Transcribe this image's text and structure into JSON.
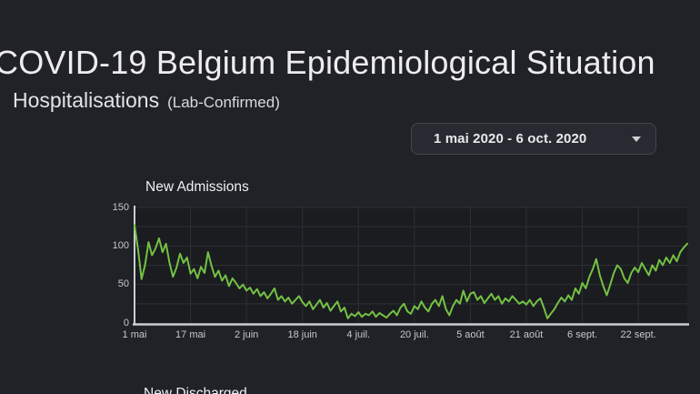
{
  "page": {
    "title": "COVID-19 Belgium Epidemiological Situation",
    "subtitle": "Hospitalisations",
    "subtitle_note": "(Lab-Confirmed)"
  },
  "date_picker": {
    "value": "1 mai 2020 - 6 oct. 2020",
    "icon": "caret-down-icon"
  },
  "panel": {
    "title": "New Admissions"
  },
  "next_panel": {
    "title": "New Discharged"
  },
  "colors": {
    "page_bg": "#202227",
    "plot_bg": "#1a1c20",
    "grid": "#2c2f34",
    "axis": "#c9ccd1",
    "line_green": "#74c143",
    "tick_text": "#c7c8ca"
  },
  "chart_data": {
    "type": "line",
    "title": "New Admissions",
    "xlabel": "",
    "ylabel": "",
    "start_date": "2020-05-01",
    "end_date": "2020-10-06",
    "ylim": [
      0,
      150
    ],
    "y_ticks": [
      0,
      50,
      100,
      150
    ],
    "y_grid_step": 25,
    "legend": "none",
    "grid": "on",
    "x_tick_days": [
      0,
      16,
      32,
      48,
      64,
      80,
      96,
      112,
      128,
      144
    ],
    "x_tick_labels": [
      "1 mai",
      "17 mai",
      "2 juin",
      "18 juin",
      "4 juil.",
      "20 juil.",
      "5 août",
      "21 août",
      "6 sept.",
      "22 sept."
    ],
    "values": [
      127,
      96,
      57,
      75,
      105,
      88,
      97,
      110,
      92,
      103,
      78,
      60,
      72,
      90,
      78,
      85,
      64,
      70,
      58,
      73,
      65,
      92,
      74,
      60,
      68,
      55,
      62,
      48,
      58,
      52,
      45,
      50,
      42,
      46,
      38,
      44,
      35,
      40,
      32,
      38,
      45,
      30,
      35,
      28,
      33,
      25,
      30,
      35,
      27,
      22,
      28,
      18,
      24,
      30,
      20,
      26,
      16,
      22,
      28,
      15,
      20,
      6,
      12,
      9,
      14,
      8,
      12,
      10,
      15,
      8,
      13,
      10,
      7,
      12,
      16,
      10,
      20,
      25,
      15,
      12,
      22,
      18,
      28,
      20,
      15,
      25,
      30,
      22,
      35,
      18,
      10,
      22,
      30,
      25,
      42,
      28,
      38,
      40,
      30,
      35,
      26,
      32,
      38,
      30,
      35,
      25,
      32,
      28,
      35,
      30,
      25,
      28,
      24,
      30,
      22,
      28,
      32,
      20,
      6,
      12,
      18,
      26,
      33,
      28,
      36,
      30,
      45,
      38,
      52,
      45,
      60,
      70,
      83,
      62,
      48,
      36,
      50,
      65,
      75,
      70,
      58,
      52,
      65,
      72,
      66,
      78,
      70,
      62,
      75,
      68,
      82,
      75,
      85,
      78,
      88,
      80,
      92,
      98,
      103
    ]
  }
}
